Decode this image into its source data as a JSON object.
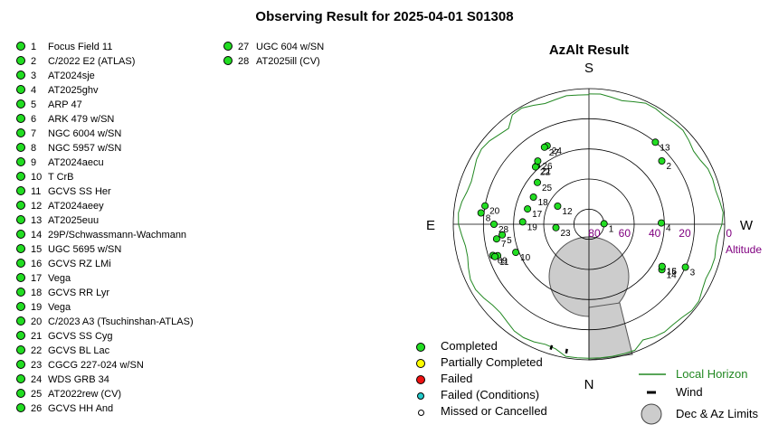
{
  "title": "Observing Result for 2025-04-01 S01308",
  "targets_col1": [
    {
      "num": "1",
      "name": "Focus Field 11"
    },
    {
      "num": "2",
      "name": "C/2022 E2 (ATLAS)"
    },
    {
      "num": "3",
      "name": "AT2024sje"
    },
    {
      "num": "4",
      "name": "AT2025ghv"
    },
    {
      "num": "5",
      "name": "ARP 47"
    },
    {
      "num": "6",
      "name": "ARK 479 w/SN"
    },
    {
      "num": "7",
      "name": "NGC 6004 w/SN"
    },
    {
      "num": "8",
      "name": "NGC 5957 w/SN"
    },
    {
      "num": "9",
      "name": "AT2024aecu"
    },
    {
      "num": "10",
      "name": "T CrB"
    },
    {
      "num": "11",
      "name": "GCVS SS Her"
    },
    {
      "num": "12",
      "name": "AT2024aeey"
    },
    {
      "num": "13",
      "name": "AT2025euu"
    },
    {
      "num": "14",
      "name": "29P/Schwassmann-Wachmann"
    },
    {
      "num": "15",
      "name": "UGC 5695 w/SN"
    },
    {
      "num": "16",
      "name": "GCVS RZ LMi"
    },
    {
      "num": "17",
      "name": "Vega"
    },
    {
      "num": "18",
      "name": "GCVS RR Lyr"
    },
    {
      "num": "19",
      "name": "Vega"
    },
    {
      "num": "20",
      "name": "C/2023 A3 (Tsuchinshan-ATLAS)"
    },
    {
      "num": "21",
      "name": "GCVS SS Cyg"
    },
    {
      "num": "22",
      "name": "GCVS BL Lac"
    },
    {
      "num": "23",
      "name": "CGCG 227-024 w/SN"
    },
    {
      "num": "24",
      "name": "WDS GRB 34"
    },
    {
      "num": "25",
      "name": "AT2022rew (CV)"
    },
    {
      "num": "26",
      "name": "GCVS HH And"
    }
  ],
  "targets_col2": [
    {
      "num": "27",
      "name": "UGC 604 w/SN"
    },
    {
      "num": "28",
      "name": "AT2025ill (CV)"
    }
  ],
  "chart_data": {
    "type": "scatter",
    "title": "AzAlt Result",
    "compass": {
      "top": "S",
      "bottom": "N",
      "left": "E",
      "right": "W"
    },
    "altitude_label": "Altitude",
    "altitude_ticks": [
      "80",
      "60",
      "40",
      "20",
      "0"
    ],
    "altitude_tick_values": [
      80,
      60,
      40,
      20,
      0
    ],
    "point_status": "completed",
    "points": [
      {
        "label": "1",
        "az": 272,
        "alt": 80
      },
      {
        "label": "2",
        "az": 311,
        "alt": 26
      },
      {
        "label": "3",
        "az": 246,
        "alt": 20
      },
      {
        "label": "4",
        "az": 271,
        "alt": 42
      },
      {
        "label": "5",
        "az": 97,
        "alt": 32
      },
      {
        "label": "6",
        "az": 108,
        "alt": 23
      },
      {
        "label": "7",
        "az": 99,
        "alt": 28
      },
      {
        "label": "8",
        "az": 84,
        "alt": 18
      },
      {
        "label": "9",
        "az": 109,
        "alt": 26
      },
      {
        "label": "10",
        "az": 111,
        "alt": 38
      },
      {
        "label": "11",
        "az": 109,
        "alt": 24
      },
      {
        "label": "12",
        "az": 60,
        "alt": 66
      },
      {
        "label": "13",
        "az": 321,
        "alt": 20
      },
      {
        "label": "14",
        "az": 238,
        "alt": 33
      },
      {
        "label": "15",
        "az": 240,
        "alt": 34
      },
      {
        "label": "16",
        "az": 240,
        "alt": 34
      },
      {
        "label": "17",
        "az": 76,
        "alt": 48
      },
      {
        "label": "18",
        "az": 64,
        "alt": 49
      },
      {
        "label": "19",
        "az": 88,
        "alt": 46
      },
      {
        "label": "20",
        "az": 80,
        "alt": 20
      },
      {
        "label": "21",
        "az": 42,
        "alt": 38
      },
      {
        "label": "22",
        "az": 43,
        "alt": 38
      },
      {
        "label": "23",
        "az": 96,
        "alt": 68
      },
      {
        "label": "24",
        "az": 28,
        "alt": 31
      },
      {
        "label": "25",
        "az": 51,
        "alt": 46
      },
      {
        "label": "26",
        "az": 39,
        "alt": 36
      },
      {
        "label": "27",
        "az": 30,
        "alt": 31
      },
      {
        "label": "28",
        "az": 90,
        "alt": 27
      }
    ],
    "horizon_note": "Local Horizon shown as green line near the outer ring",
    "wind_marks_az": [
      170,
      163
    ],
    "legend": {
      "completed": "Completed",
      "partial": "Partially Completed",
      "failed": "Failed",
      "failed_conditions": "Failed (Conditions)",
      "missed": "Missed or Cancelled",
      "local_horizon": "Local Horizon",
      "wind": "Wind",
      "limits": "Dec & Az Limits"
    },
    "colors": {
      "completed": "#22dd22",
      "partial": "#ffff00",
      "failed": "#ee1111",
      "failed_conditions": "#22cccc",
      "missed": "#ffffff",
      "horizon": "#228822",
      "limits_fill": "#cccccc",
      "altitude_text": "#800080"
    }
  }
}
